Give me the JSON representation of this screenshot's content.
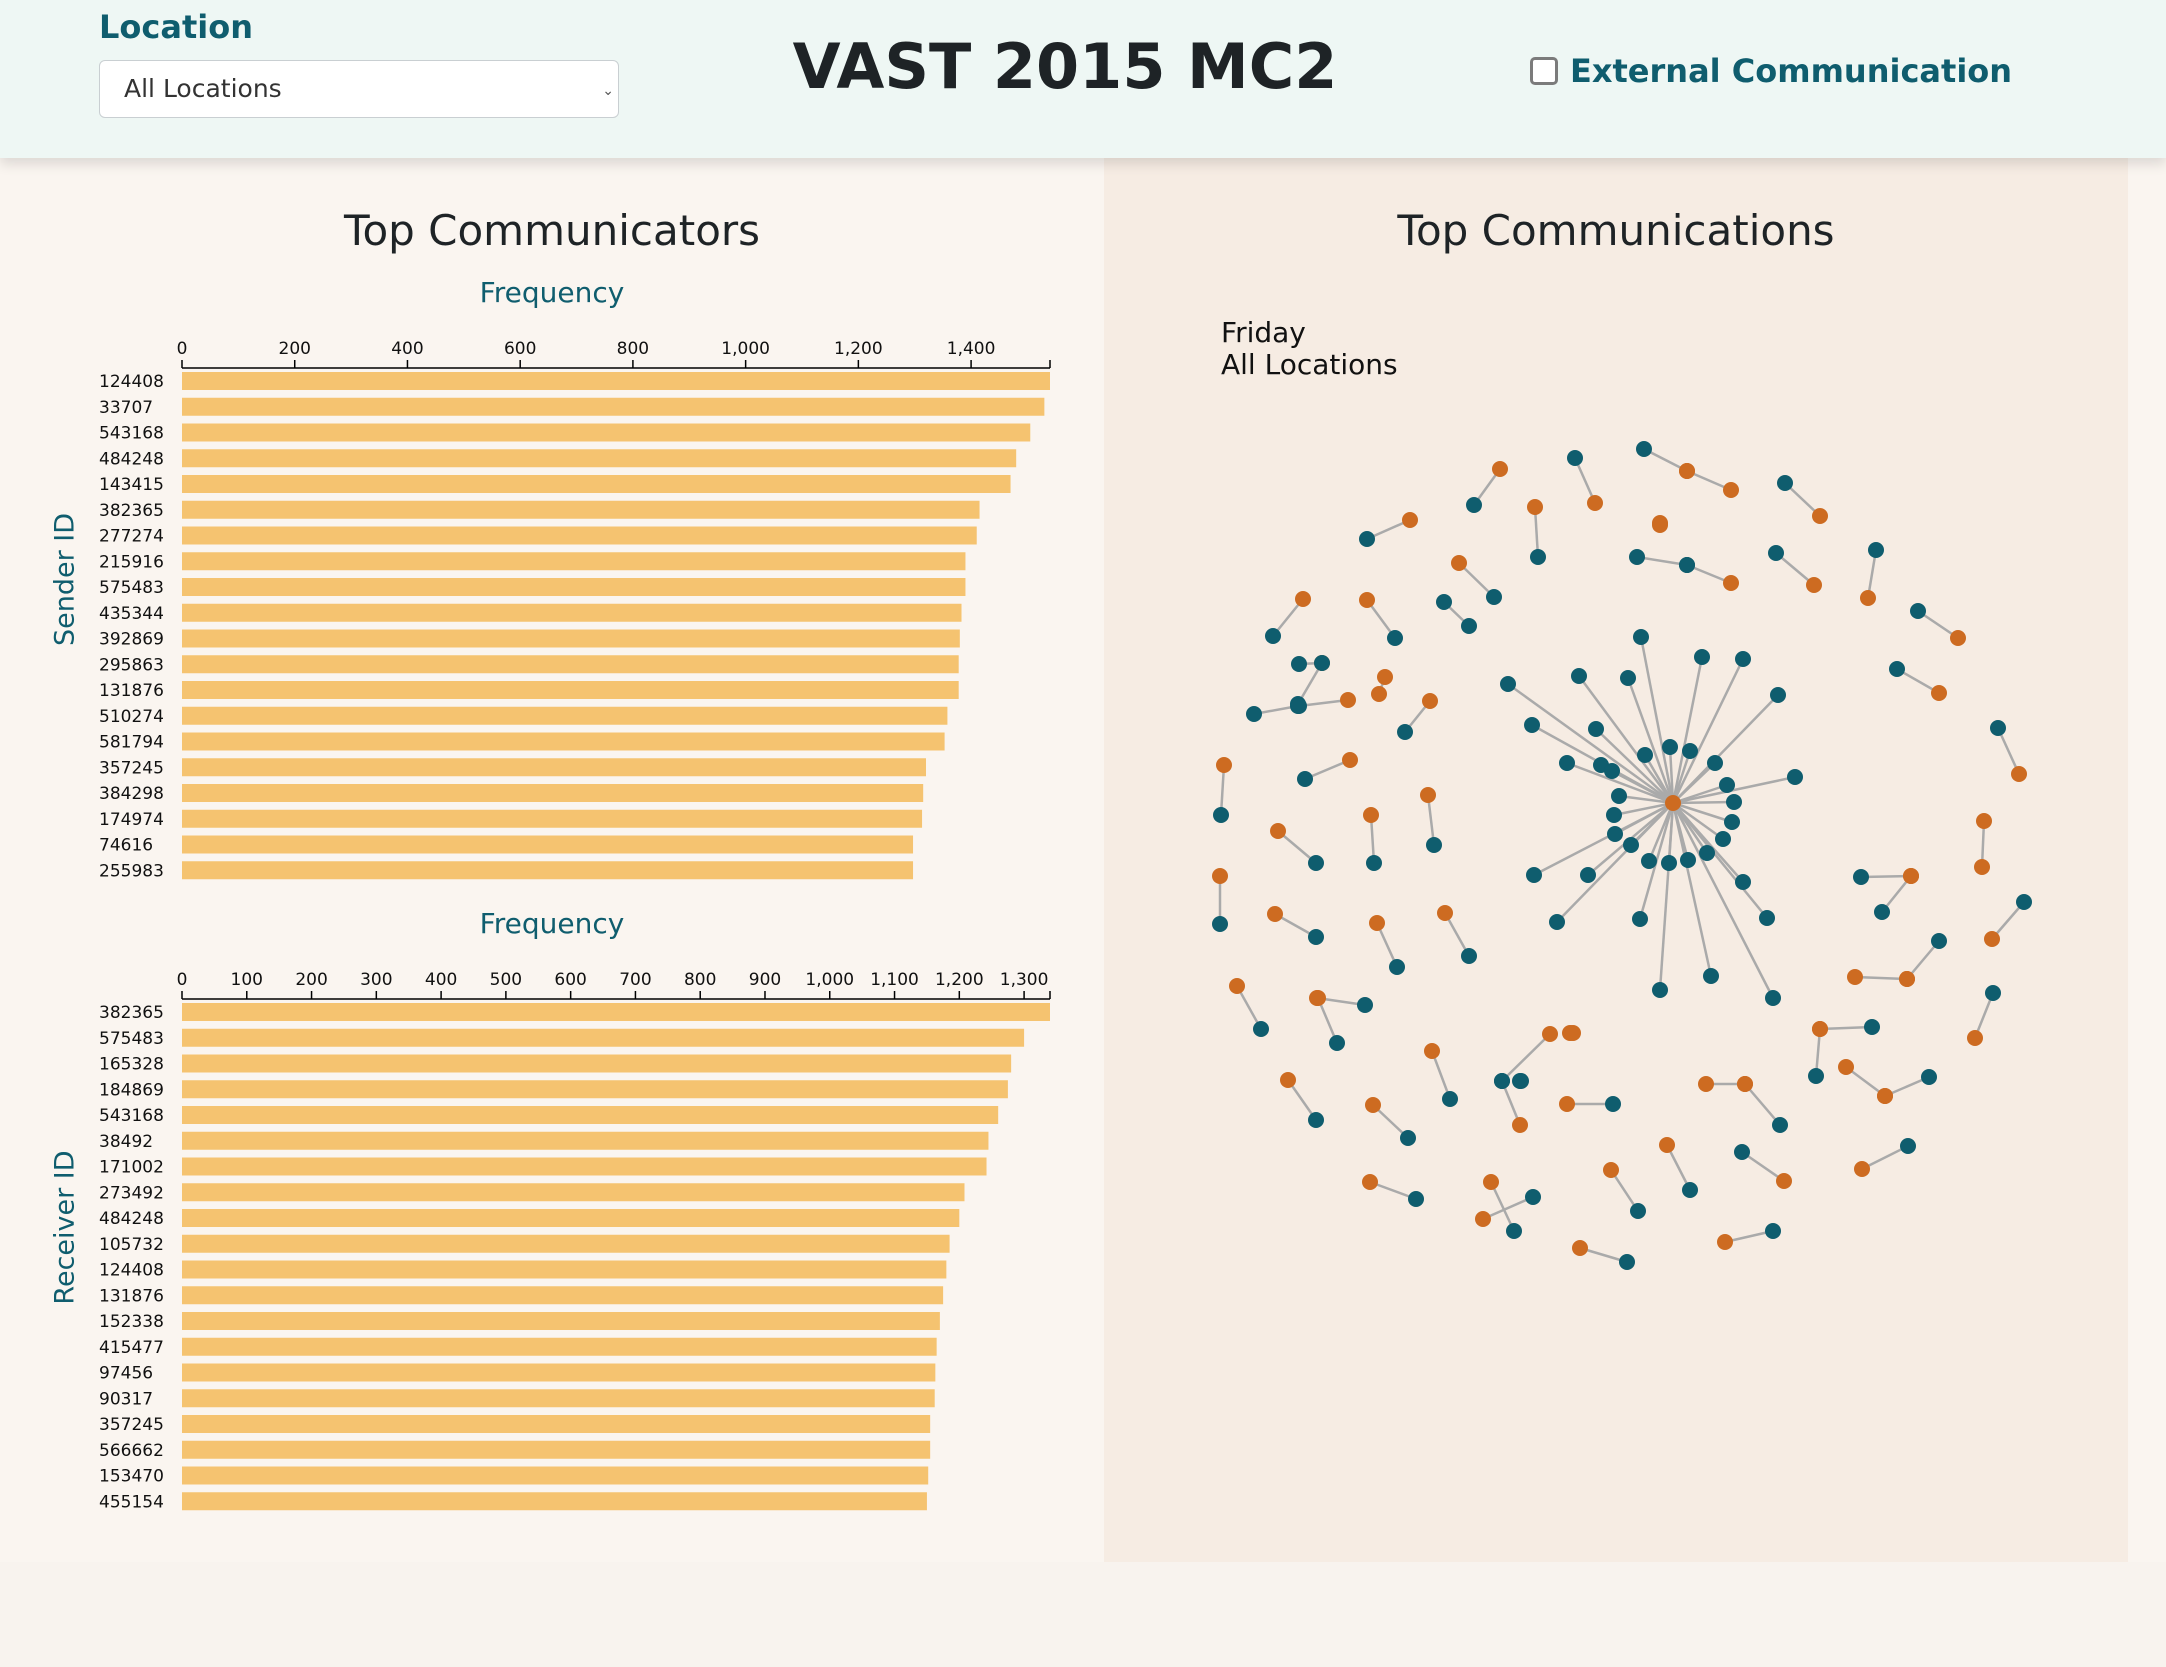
{
  "header": {
    "location_label": "Location",
    "location_selected": "All Locations",
    "title": "VAST 2015 MC2",
    "external_label": "External Communication",
    "external_checked": false
  },
  "left": {
    "title": "Top Communicators"
  },
  "right": {
    "title": "Top Communications",
    "day": "Friday",
    "location": "All Locations"
  },
  "colors": {
    "bar": "#f5c370",
    "teal_node": "#0f5d6e",
    "orange_node": "#cd6b21",
    "link": "#aaaaaa"
  },
  "chart_data": [
    {
      "type": "bar",
      "orientation": "horizontal",
      "title": "Frequency",
      "ylabel": "Sender ID",
      "xlim": [
        0,
        1540
      ],
      "xticks": [
        0,
        200,
        400,
        600,
        800,
        1000,
        1200,
        1400
      ],
      "xtick_labels": [
        "0",
        "200",
        "400",
        "600",
        "800",
        "1,000",
        "1,200",
        "1,400"
      ],
      "categories": [
        "124408",
        "33707",
        "543168",
        "484248",
        "143415",
        "382365",
        "277274",
        "215916",
        "575483",
        "435344",
        "392869",
        "295863",
        "131876",
        "510274",
        "581794",
        "357245",
        "384298",
        "174974",
        "74616",
        "255983"
      ],
      "values": [
        1540,
        1530,
        1505,
        1480,
        1470,
        1415,
        1410,
        1390,
        1390,
        1383,
        1380,
        1378,
        1378,
        1358,
        1353,
        1320,
        1315,
        1313,
        1297,
        1297
      ]
    },
    {
      "type": "bar",
      "orientation": "horizontal",
      "title": "Frequency",
      "ylabel": "Receiver ID",
      "xlim": [
        0,
        1340
      ],
      "xticks": [
        0,
        100,
        200,
        300,
        400,
        500,
        600,
        700,
        800,
        900,
        1000,
        1100,
        1200,
        1300
      ],
      "xtick_labels": [
        "0",
        "100",
        "200",
        "300",
        "400",
        "500",
        "600",
        "700",
        "800",
        "900",
        "1,000",
        "1,100",
        "1,200",
        "1,300"
      ],
      "categories": [
        "382365",
        "575483",
        "165328",
        "184869",
        "543168",
        "38492",
        "171002",
        "273492",
        "484248",
        "105732",
        "124408",
        "131876",
        "152338",
        "415477",
        "97456",
        "90317",
        "357245",
        "566662",
        "153470",
        "455154"
      ],
      "values": [
        1340,
        1300,
        1280,
        1275,
        1260,
        1245,
        1242,
        1208,
        1200,
        1185,
        1180,
        1175,
        1170,
        1165,
        1163,
        1162,
        1155,
        1155,
        1152,
        1150
      ]
    }
  ],
  "network": {
    "hub": [
      1673,
      803
    ],
    "hub_color": "orange",
    "hub_neighbors": [
      [
        1596,
        729
      ],
      [
        1628,
        678
      ],
      [
        1641,
        637
      ],
      [
        1579,
        676
      ],
      [
        1532,
        725
      ],
      [
        1508,
        684
      ],
      [
        1601,
        765
      ],
      [
        1567,
        763
      ],
      [
        1612,
        771
      ],
      [
        1645,
        755
      ],
      [
        1670,
        747
      ],
      [
        1690,
        751
      ],
      [
        1715,
        763
      ],
      [
        1727,
        785
      ],
      [
        1734,
        802
      ],
      [
        1732,
        822
      ],
      [
        1723,
        839
      ],
      [
        1707,
        853
      ],
      [
        1688,
        860
      ],
      [
        1669,
        863
      ],
      [
        1649,
        861
      ],
      [
        1631,
        845
      ],
      [
        1615,
        834
      ],
      [
        1614,
        815
      ],
      [
        1619,
        796
      ],
      [
        1588,
        875
      ],
      [
        1534,
        875
      ],
      [
        1557,
        922
      ],
      [
        1702,
        657
      ],
      [
        1743,
        659
      ],
      [
        1778,
        695
      ],
      [
        1795,
        777
      ],
      [
        1743,
        882
      ],
      [
        1767,
        918
      ],
      [
        1640,
        919
      ],
      [
        1660,
        990
      ],
      [
        1711,
        976
      ],
      [
        1773,
        998
      ]
    ],
    "edges": [
      [
        1500,
        469,
        1474,
        505,
        "o",
        "t"
      ],
      [
        1575,
        458,
        1595,
        503,
        "t",
        "o"
      ],
      [
        1644,
        449,
        1687,
        471,
        "t",
        "o"
      ],
      [
        1687,
        471,
        1731,
        490,
        "o",
        "o"
      ],
      [
        1785,
        483,
        1820,
        516,
        "t",
        "o"
      ],
      [
        1535,
        507,
        1538,
        557,
        "o",
        "t"
      ],
      [
        1367,
        539,
        1410,
        520,
        "t",
        "o"
      ],
      [
        1637,
        557,
        1687,
        565,
        "t",
        "t"
      ],
      [
        1687,
        565,
        1731,
        583,
        "t",
        "o"
      ],
      [
        1660,
        523,
        1660,
        525,
        "o",
        "o"
      ],
      [
        1776,
        553,
        1814,
        585,
        "t",
        "o"
      ],
      [
        1876,
        550,
        1868,
        598,
        "t",
        "o"
      ],
      [
        1459,
        563,
        1494,
        597,
        "o",
        "t"
      ],
      [
        1444,
        602,
        1469,
        626,
        "t",
        "t"
      ],
      [
        1367,
        600,
        1395,
        638,
        "o",
        "t"
      ],
      [
        1303,
        599,
        1273,
        636,
        "o",
        "t"
      ],
      [
        1918,
        611,
        1958,
        638,
        "t",
        "o"
      ],
      [
        1298,
        704,
        1322,
        663,
        "t",
        "o"
      ],
      [
        1322,
        663,
        1299,
        664,
        "t",
        "t"
      ],
      [
        1385,
        677,
        1379,
        694,
        "o",
        "o"
      ],
      [
        1405,
        732,
        1430,
        701,
        "t",
        "o"
      ],
      [
        1254,
        714,
        1298,
        706,
        "t",
        "t"
      ],
      [
        1299,
        706,
        1348,
        700,
        "t",
        "o"
      ],
      [
        1897,
        669,
        1939,
        693,
        "t",
        "o"
      ],
      [
        1305,
        779,
        1350,
        760,
        "t",
        "o"
      ],
      [
        1224,
        765,
        1221,
        815,
        "o",
        "t"
      ],
      [
        1998,
        728,
        2019,
        774,
        "t",
        "o"
      ],
      [
        1278,
        831,
        1316,
        863,
        "o",
        "t"
      ],
      [
        1371,
        815,
        1374,
        863,
        "o",
        "t"
      ],
      [
        1428,
        795,
        1434,
        845,
        "o",
        "t"
      ],
      [
        1984,
        821,
        1982,
        867,
        "o",
        "o"
      ],
      [
        1220,
        876,
        1220,
        924,
        "o",
        "t"
      ],
      [
        1275,
        914,
        1316,
        937,
        "o",
        "t"
      ],
      [
        1377,
        923,
        1397,
        967,
        "o",
        "t"
      ],
      [
        1445,
        913,
        1469,
        956,
        "o",
        "t"
      ],
      [
        1861,
        877,
        1911,
        876,
        "t",
        "o"
      ],
      [
        1911,
        876,
        1882,
        912,
        "o",
        "t"
      ],
      [
        2024,
        902,
        1992,
        939,
        "t",
        "o"
      ],
      [
        1855,
        977,
        1907,
        979,
        "o",
        "o"
      ],
      [
        1907,
        979,
        1939,
        941,
        "o",
        "t"
      ],
      [
        1237,
        986,
        1261,
        1029,
        "o",
        "t"
      ],
      [
        1317,
        998,
        1365,
        1005,
        "o",
        "t"
      ],
      [
        1318,
        998,
        1337,
        1043,
        "o",
        "t"
      ],
      [
        1432,
        1051,
        1450,
        1099,
        "o",
        "t"
      ],
      [
        1550,
        1034,
        1502,
        1081,
        "o",
        "t"
      ],
      [
        1520,
        1081,
        1521,
        1081,
        "t",
        "t"
      ],
      [
        1502,
        1081,
        1520,
        1125,
        "t",
        "o"
      ],
      [
        1993,
        993,
        1975,
        1038,
        "t",
        "o"
      ],
      [
        1872,
        1027,
        1820,
        1029,
        "t",
        "o"
      ],
      [
        1820,
        1029,
        1816,
        1076,
        "o",
        "t"
      ],
      [
        1846,
        1067,
        1885,
        1096,
        "o",
        "o"
      ],
      [
        1885,
        1096,
        1929,
        1077,
        "o",
        "t"
      ],
      [
        1288,
        1080,
        1316,
        1120,
        "o",
        "t"
      ],
      [
        1373,
        1105,
        1408,
        1138,
        "o",
        "t"
      ],
      [
        1567,
        1104,
        1613,
        1104,
        "o",
        "t"
      ],
      [
        1706,
        1084,
        1745,
        1084,
        "o",
        "o"
      ],
      [
        1745,
        1084,
        1780,
        1125,
        "o",
        "t"
      ],
      [
        1742,
        1152,
        1784,
        1181,
        "t",
        "o"
      ],
      [
        1667,
        1145,
        1690,
        1190,
        "o",
        "t"
      ],
      [
        1611,
        1170,
        1638,
        1211,
        "o",
        "t"
      ],
      [
        1370,
        1182,
        1416,
        1199,
        "o",
        "t"
      ],
      [
        1491,
        1182,
        1514,
        1231,
        "o",
        "t"
      ],
      [
        1483,
        1219,
        1533,
        1197,
        "o",
        "t"
      ],
      [
        1908,
        1146,
        1862,
        1169,
        "t",
        "o"
      ],
      [
        1580,
        1248,
        1627,
        1262,
        "o",
        "t"
      ],
      [
        1725,
        1242,
        1773,
        1231,
        "o",
        "t"
      ],
      [
        1570,
        1033,
        1573,
        1033,
        "o",
        "o"
      ]
    ]
  }
}
